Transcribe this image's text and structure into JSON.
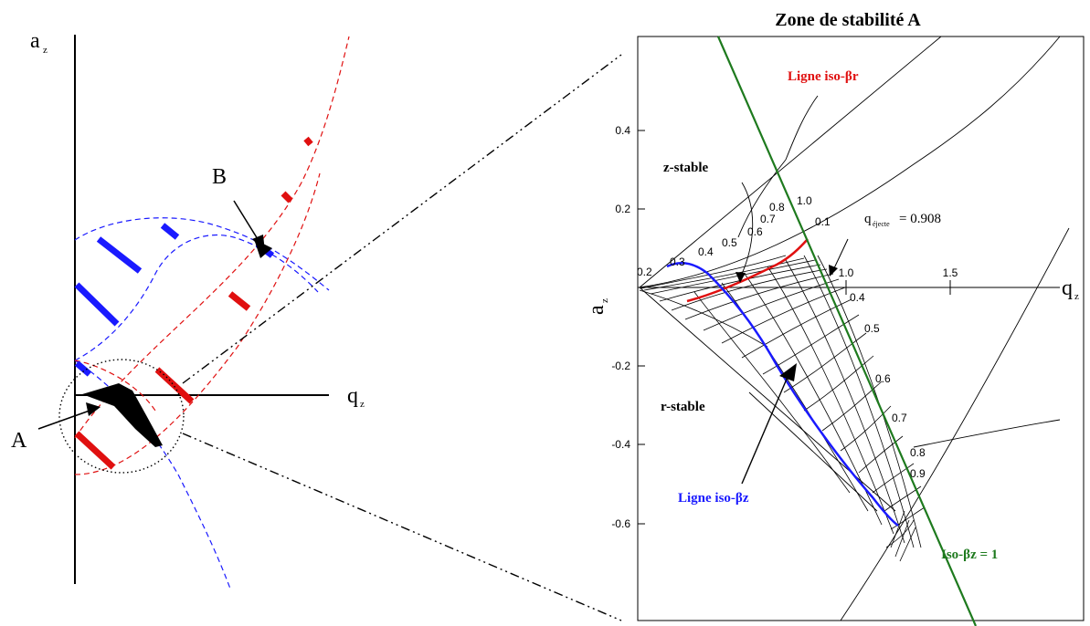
{
  "overview": {
    "axis_y_label": "a",
    "axis_y_sub": "z",
    "axis_x_label": "q",
    "axis_x_sub": "z",
    "label_a": "A",
    "label_b": "B"
  },
  "zoom": {
    "title": "Zone de stabilité A",
    "y_axis_label": "a",
    "y_axis_sub": "z",
    "x_axis_label": "q",
    "x_axis_sub": "z",
    "y_ticks": [
      "0.4",
      "0.2",
      "-0.2",
      "-0.4",
      "-0.6"
    ],
    "x_ticks": [
      "1.0",
      "1.5"
    ],
    "region_z_stable": "z-stable",
    "region_r_stable": "r-stable",
    "iso_beta_r_label": "Ligne iso-βr",
    "iso_beta_z_label": "Ligne iso-βz",
    "iso_beta_z1_label": "Iso-βz = 1",
    "q_eject_main": "q",
    "q_eject_sub": "éjecte",
    "q_eject_value": "= 0.908",
    "upper_curve_labels": [
      "0.2",
      "0.3",
      "0.4",
      "0.5",
      "0.6",
      "0.7",
      "0.8",
      "1.0",
      "0.1"
    ],
    "lower_curve_labels": [
      "0.4",
      "0.5",
      "0.6",
      "0.7",
      "0.8",
      "0.9"
    ]
  },
  "colors": {
    "iso_beta_r": "#e01010",
    "iso_beta_z": "#1a1aff",
    "iso_beta_z1": "#1e7a1e",
    "ink": "#000000"
  }
}
